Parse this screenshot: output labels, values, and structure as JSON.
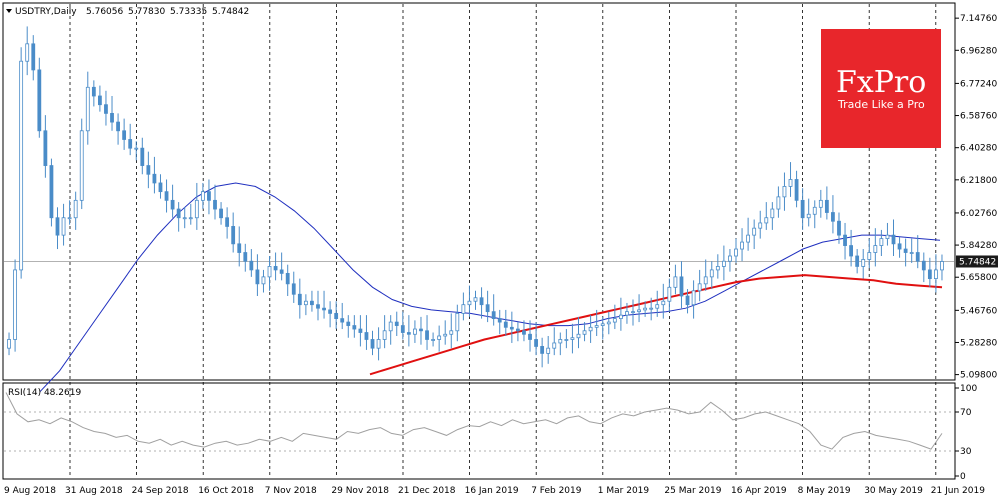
{
  "header": {
    "symbol": "USDTRY",
    "timeframe": "Daily",
    "open": "5.76056",
    "high": "5.77830",
    "low": "5.73335",
    "close": "5.74842"
  },
  "logo": {
    "brand": "FxPro",
    "tagline": "Trade Like a Pro",
    "color": "#e8262b"
  },
  "colors": {
    "candle": "#4a8cc8",
    "ma_fast": "#1f2fbf",
    "ma_slow": "#e01010",
    "rsi": "#a0a0a0",
    "current_price_label": "#1a1a1a"
  },
  "chart_data": [
    {
      "type": "candlestick",
      "title": "USDTRY,Daily",
      "current_price": 5.74842,
      "y_ticks": [
        "7.14760",
        "6.96280",
        "6.77240",
        "6.58760",
        "6.40280",
        "6.21800",
        "6.02760",
        "5.84280",
        "5.65800",
        "5.46760",
        "5.28280",
        "5.09800"
      ],
      "ylim": [
        5.09,
        7.16
      ],
      "x_labels": [
        "9 Aug 2018",
        "31 Aug 2018",
        "24 Sep 2018",
        "16 Oct 2018",
        "7 Nov 2018",
        "29 Nov 2018",
        "21 Dec 2018",
        "16 Jan 2019",
        "7 Feb 2019",
        "1 Mar 2019",
        "25 Mar 2019",
        "16 Apr 2019",
        "8 May 2019",
        "30 May 2019",
        "21 Jun 2019"
      ],
      "close_series": [
        5.3,
        5.7,
        6.9,
        7.0,
        6.85,
        6.5,
        6.3,
        6.0,
        5.9,
        6.0,
        6.0,
        6.1,
        6.5,
        6.75,
        6.7,
        6.65,
        6.6,
        6.55,
        6.5,
        6.45,
        6.4,
        6.4,
        6.3,
        6.25,
        6.2,
        6.15,
        6.1,
        6.05,
        6.0,
        6.0,
        6.0,
        6.1,
        6.15,
        6.1,
        6.05,
        6.0,
        5.95,
        5.85,
        5.8,
        5.75,
        5.7,
        5.62,
        5.66,
        5.72,
        5.7,
        5.68,
        5.62,
        5.56,
        5.5,
        5.52,
        5.5,
        5.48,
        5.47,
        5.45,
        5.42,
        5.4,
        5.38,
        5.36,
        5.34,
        5.3,
        5.25,
        5.3,
        5.35,
        5.4,
        5.38,
        5.34,
        5.33,
        5.36,
        5.35,
        5.3,
        5.3,
        5.32,
        5.33,
        5.35,
        5.45,
        5.5,
        5.52,
        5.54,
        5.5,
        5.46,
        5.42,
        5.4,
        5.37,
        5.36,
        5.35,
        5.33,
        5.3,
        5.26,
        5.22,
        5.25,
        5.28,
        5.3,
        5.3,
        5.31,
        5.33,
        5.35,
        5.37,
        5.38,
        5.39,
        5.4,
        5.42,
        5.44,
        5.46,
        5.46,
        5.47,
        5.48,
        5.48,
        5.5,
        5.52,
        5.6,
        5.66,
        5.55,
        5.5,
        5.58,
        5.62,
        5.66,
        5.7,
        5.72,
        5.75,
        5.78,
        5.82,
        5.86,
        5.9,
        5.94,
        5.97,
        6.0,
        6.05,
        6.12,
        6.18,
        6.22,
        6.1,
        6.0,
        6.02,
        6.06,
        6.1,
        6.03,
        5.98,
        5.9,
        5.84,
        5.78,
        5.72,
        5.76,
        5.8,
        5.84,
        5.88,
        5.9,
        5.85,
        5.82,
        5.8,
        5.8,
        5.75,
        5.7,
        5.65,
        5.7,
        5.74842
      ],
      "ma_fast": [
        5.0,
        5.12,
        5.28,
        5.44,
        5.6,
        5.76,
        5.9,
        6.02,
        6.12,
        6.18,
        6.2,
        6.18,
        6.12,
        6.04,
        5.94,
        5.82,
        5.7,
        5.6,
        5.53,
        5.49,
        5.47,
        5.46,
        5.45,
        5.43,
        5.41,
        5.39,
        5.38,
        5.38,
        5.39,
        5.42,
        5.44,
        5.45,
        5.46,
        5.48,
        5.52,
        5.58,
        5.64,
        5.7,
        5.76,
        5.82,
        5.86,
        5.88,
        5.9,
        5.9,
        5.89,
        5.88,
        5.87
      ],
      "ma_slow": [
        5.1,
        5.14,
        5.18,
        5.22,
        5.26,
        5.3,
        5.33,
        5.36,
        5.39,
        5.42,
        5.45,
        5.48,
        5.51,
        5.54,
        5.57,
        5.6,
        5.63,
        5.65,
        5.66,
        5.67,
        5.66,
        5.65,
        5.64,
        5.62,
        5.61,
        5.6
      ]
    },
    {
      "type": "line",
      "title": "RSI(14) 48.2619",
      "indicator": "RSI(14)",
      "value": "48.2619",
      "y_ticks": [
        "100",
        "70",
        "30",
        "0"
      ],
      "ylim": [
        0,
        100
      ],
      "values": [
        90,
        68,
        60,
        62,
        58,
        64,
        60,
        54,
        50,
        48,
        44,
        46,
        40,
        38,
        42,
        36,
        40,
        36,
        34,
        38,
        40,
        36,
        38,
        42,
        40,
        44,
        40,
        48,
        46,
        44,
        42,
        50,
        48,
        52,
        54,
        48,
        46,
        52,
        54,
        50,
        46,
        52,
        56,
        55,
        60,
        56,
        62,
        58,
        60,
        62,
        58,
        64,
        66,
        60,
        58,
        64,
        68,
        66,
        70,
        72,
        74,
        72,
        68,
        70,
        80,
        72,
        62,
        64,
        68,
        70,
        66,
        62,
        58,
        50,
        36,
        32,
        44,
        48,
        50,
        46,
        44,
        42,
        40,
        36,
        32,
        48
      ]
    }
  ]
}
